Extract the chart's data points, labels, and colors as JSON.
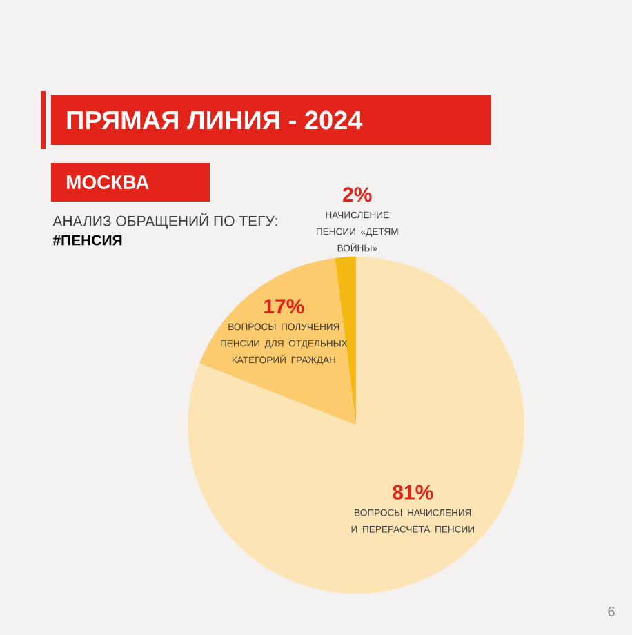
{
  "chart_data": {
    "type": "pie",
    "title": "ПРЯМАЯ ЛИНИЯ - 2024",
    "subtitle": "МОСКВА",
    "annotations": [
      "АНАЛИЗ ОБРАЩЕНИЙ ПО ТЕГУ:",
      "#ПЕНСИЯ",
      "6"
    ],
    "categories": [
      "НАЧИСЛЕНИЕ ПЕНСИИ «ДЕТЯМ ВОЙНЫ»",
      "ВОПРОСЫ ПОЛУЧЕНИЯ ПЕНСИИ ДЛЯ ОТДЕЛЬНЫХ КАТЕГОРИЙ ГРАЖДАН",
      "ВОПРОСЫ НАЧИСЛЕНИЯ И ПЕРЕРАСЧЁТА ПЕНСИИ"
    ],
    "values": [
      2,
      17,
      81
    ],
    "value_labels": [
      "2%",
      "17%",
      "81%"
    ],
    "colors": [
      "#f5b914",
      "#fccb6e",
      "#fde4b4"
    ]
  }
}
